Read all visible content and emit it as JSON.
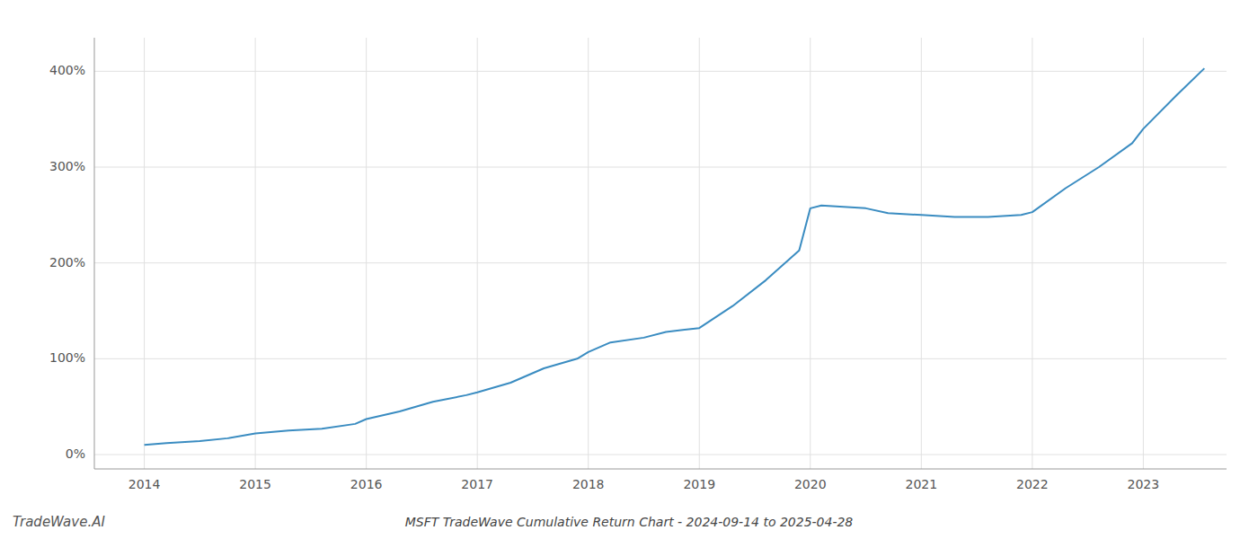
{
  "chart_data": {
    "type": "line",
    "title": "MSFT TradeWave Cumulative Return Chart - 2024-09-14 to 2025-04-28",
    "annotations": [
      "TradeWave.AI"
    ],
    "x": [
      2014.0,
      2014.2,
      2014.5,
      2014.75,
      2015.0,
      2015.3,
      2015.6,
      2015.9,
      2016.0,
      2016.3,
      2016.6,
      2016.9,
      2017.0,
      2017.3,
      2017.6,
      2017.9,
      2018.0,
      2018.2,
      2018.5,
      2018.7,
      2019.0,
      2019.3,
      2019.6,
      2019.9,
      2020.0,
      2020.1,
      2020.5,
      2020.7,
      2021.0,
      2021.3,
      2021.6,
      2021.9,
      2022.0,
      2022.3,
      2022.6,
      2022.9,
      2023.0,
      2023.3,
      2023.55
    ],
    "values": [
      10,
      12,
      14,
      17,
      22,
      25,
      27,
      32,
      37,
      45,
      55,
      62,
      65,
      75,
      90,
      100,
      107,
      117,
      122,
      128,
      132,
      155,
      182,
      213,
      257,
      260,
      257,
      252,
      250,
      248,
      248,
      250,
      253,
      278,
      300,
      325,
      340,
      375,
      403
    ],
    "color": "#3a8cc1",
    "xlim": [
      2013.55,
      2023.75
    ],
    "ylim": [
      -15,
      435
    ],
    "xticks": [
      2014,
      2015,
      2016,
      2017,
      2018,
      2019,
      2020,
      2021,
      2022,
      2023
    ],
    "yticks": [
      {
        "value": 0,
        "label": "0%"
      },
      {
        "value": 100,
        "label": "100%"
      },
      {
        "value": 200,
        "label": "200%"
      },
      {
        "value": 300,
        "label": "300%"
      },
      {
        "value": 400,
        "label": "400%"
      }
    ],
    "grid": true
  }
}
